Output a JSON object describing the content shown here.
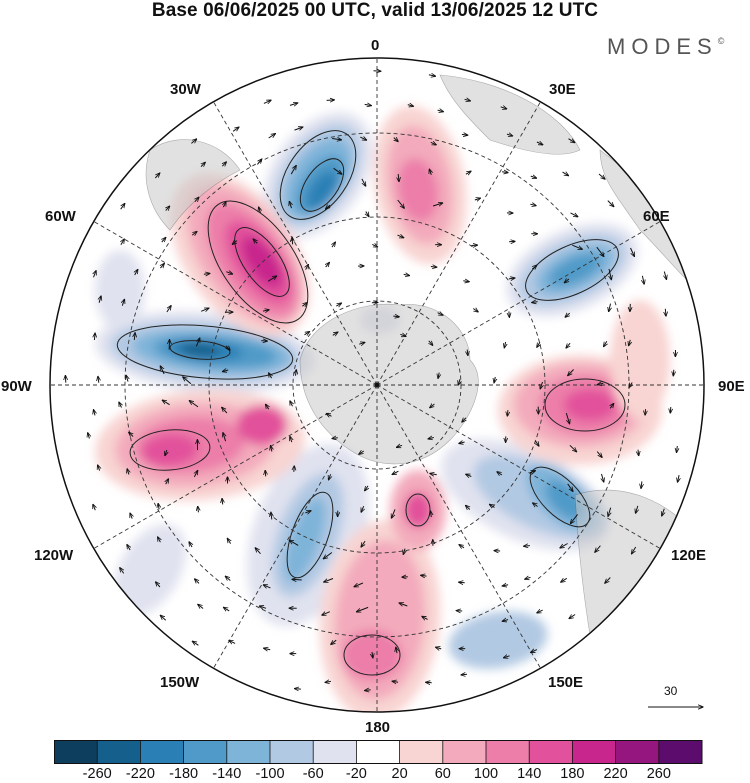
{
  "title": "Base 06/06/2025 00 UTC, valid 13/06/2025 12 UTC",
  "brand": "MODES",
  "brand_mark": "©",
  "map": {
    "projection": "south-polar-stereographic",
    "longitude_labels": {
      "lon_0": "0",
      "lon_30e": "30E",
      "lon_60e": "60E",
      "lon_90e": "90E",
      "lon_120e": "120E",
      "lon_150e": "150E",
      "lon_180": "180",
      "lon_150w": "150W",
      "lon_120w": "120W",
      "lon_90w": "90W",
      "lon_60w": "60W",
      "lon_30w": "30W"
    },
    "reference_vector_label": "30"
  },
  "colorbar": {
    "tick_labels": [
      "-260",
      "-220",
      "-180",
      "-140",
      "-100",
      "-60",
      "-20",
      "20",
      "60",
      "100",
      "140",
      "180",
      "220",
      "260"
    ],
    "colors": [
      "#0e3e5e",
      "#155f8c",
      "#2a80b5",
      "#4f9ac8",
      "#7fb4d9",
      "#b2c9e3",
      "#e0e2ef",
      "#ffffff",
      "#f8d4d2",
      "#f3aabc",
      "#ec7ea9",
      "#e2519b",
      "#c8258d",
      "#96167f",
      "#5c0c6d"
    ]
  }
}
